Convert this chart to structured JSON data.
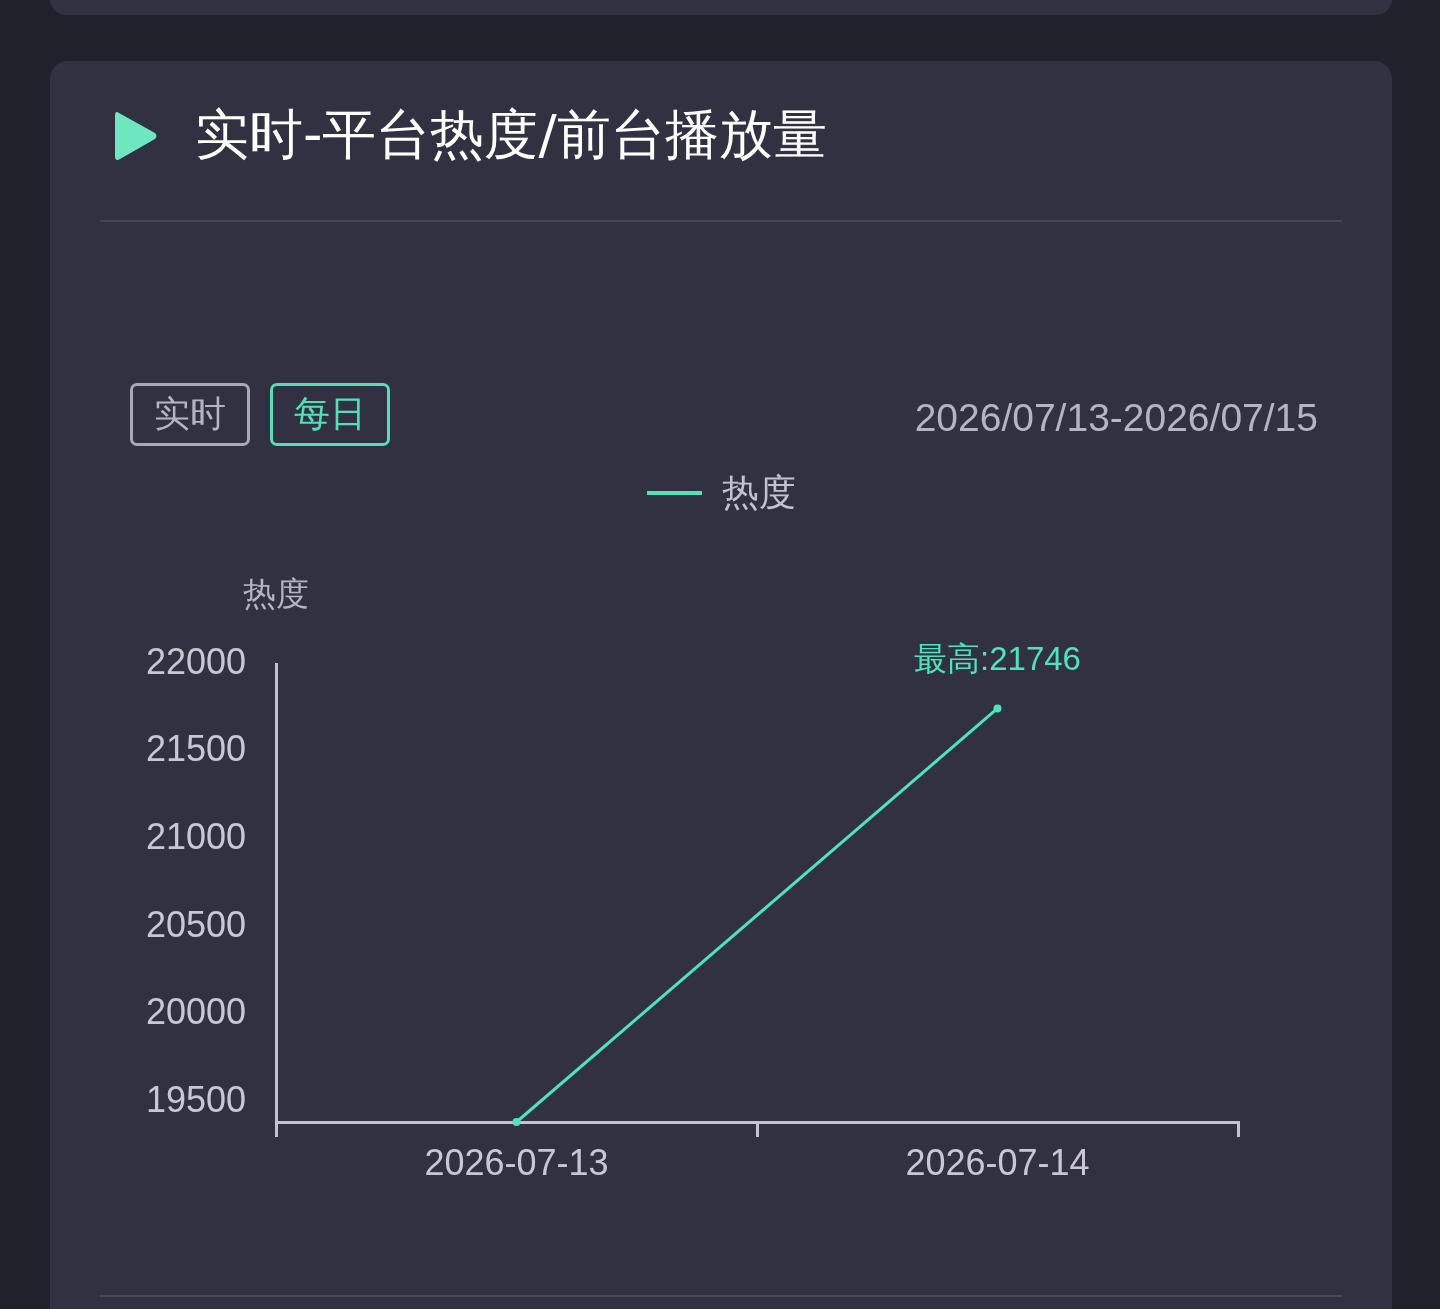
{
  "chart_data": {
    "type": "line",
    "title": "实时-平台热度/前台播放量",
    "subtitle": "2026/07/13-2026/07/15",
    "ylabel": "热度",
    "categories": [
      "2026-07-13",
      "2026-07-14"
    ],
    "series": [
      {
        "name": "热度",
        "color": "#4fe3b9",
        "values": [
          19385,
          21746
        ]
      }
    ],
    "ylim": [
      19385,
      22000
    ],
    "yticks": [
      19500,
      20000,
      20500,
      21000,
      21500,
      22000
    ],
    "grid": false,
    "legend": "top",
    "marker": "circle",
    "line_style": "solid",
    "annotations": [
      "实时",
      "每日",
      {
        "text": "最高:21746",
        "x": "2026-07-14",
        "y": 21746
      }
    ]
  }
}
